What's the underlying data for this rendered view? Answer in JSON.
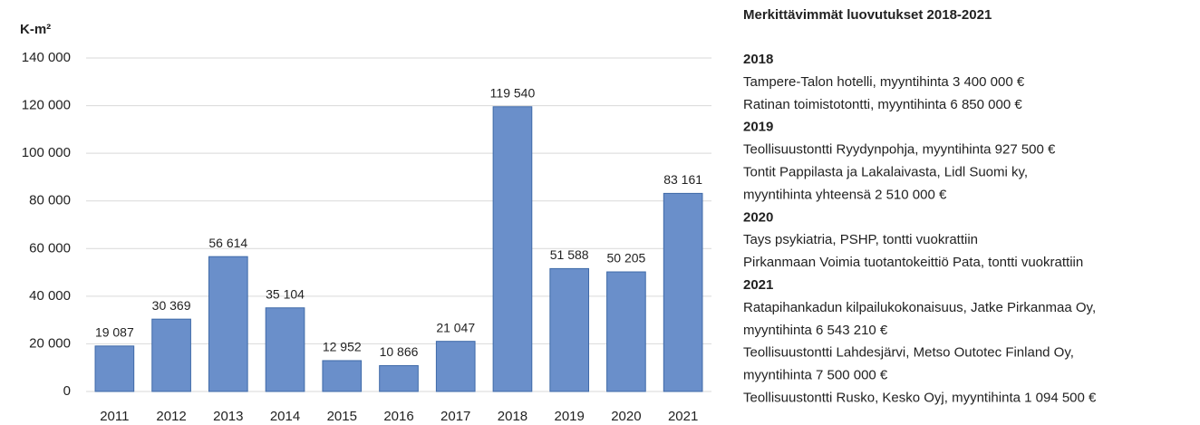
{
  "chart_data": {
    "type": "bar",
    "y_label": "K-m²",
    "categories": [
      "2011",
      "2012",
      "2013",
      "2014",
      "2015",
      "2016",
      "2017",
      "2018",
      "2019",
      "2020",
      "2021"
    ],
    "values": [
      19087,
      30369,
      56614,
      35104,
      12952,
      10866,
      21047,
      119540,
      51588,
      50205,
      83161
    ],
    "value_labels": [
      "19 087",
      "30 369",
      "56 614",
      "35 104",
      "12 952",
      "10 866",
      "21 047",
      "119 540",
      "51 588",
      "50 205",
      "83 161"
    ],
    "color": "#6a8fca",
    "ylim": [
      0,
      140000
    ],
    "yticks": [
      0,
      {
        "value": 20000,
        "label": "20 000"
      },
      {
        "value": 40000,
        "label": "40 000"
      },
      {
        "value": 60000,
        "label": "60 000"
      },
      {
        "value": 80000,
        "label": "80 000"
      },
      {
        "value": 100000,
        "label": "100 000"
      },
      {
        "value": 120000,
        "label": "120 000"
      },
      {
        "value": 140000,
        "label": "140 000"
      }
    ],
    "grid": true
  },
  "sidebar": {
    "title": "Merkittävimmät luovutukset 2018-2021",
    "sections": [
      {
        "year": "2018",
        "lines": [
          "Tampere-Talon hotelli, myyntihinta 3 400 000 €",
          "Ratinan toimistotontti, myyntihinta  6 850 000 €"
        ]
      },
      {
        "year": "2019",
        "lines": [
          "Teollisuustontti Ryydynpohja, myyntihinta 927 500 €",
          "Tontit Pappilasta ja Lakalaivasta, Lidl Suomi ky,",
          "myyntihinta yhteensä 2 510 000 €"
        ]
      },
      {
        "year": "2020",
        "lines": [
          "Tays psykiatria, PSHP, tontti vuokrattiin",
          "Pirkanmaan Voimia tuotantokeittiö Pata, tontti vuokrattiin"
        ]
      },
      {
        "year": "2021",
        "lines": [
          "Ratapihankadun kilpailukokonaisuus, Jatke Pirkanmaa Oy,",
          "myyntihinta 6 543 210 €",
          "Teollisuustontti Lahdesjärvi, Metso Outotec Finland Oy,",
          "myyntihinta 7 500 000 €",
          "Teollisuustontti Rusko, Kesko Oyj, myyntihinta 1 094 500 €"
        ]
      }
    ]
  }
}
